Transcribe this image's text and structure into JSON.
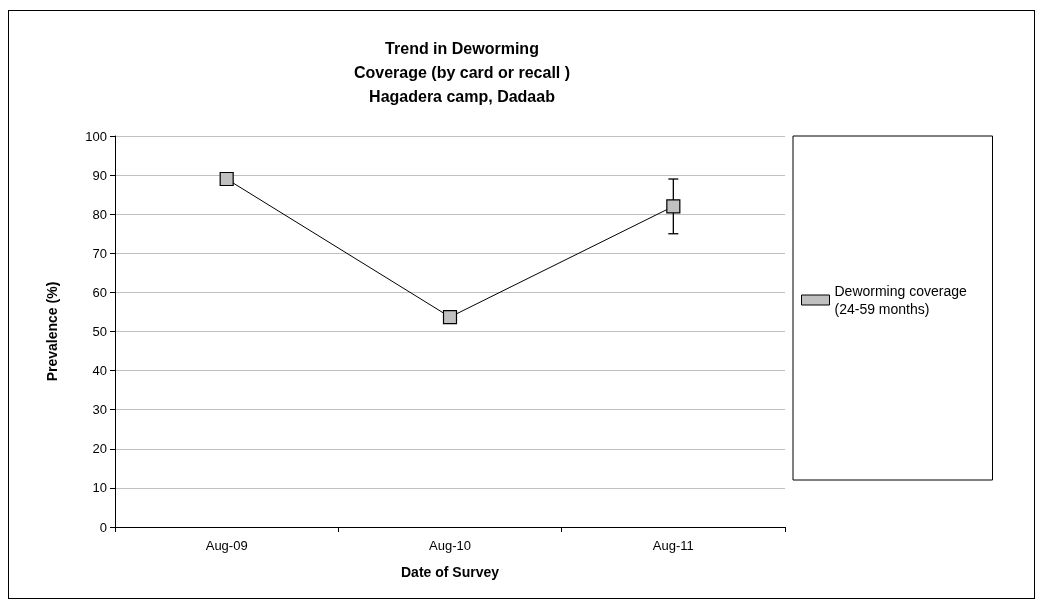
{
  "chart_data": {
    "type": "line",
    "title": "Trend in Deworming\nCoverage (by card or recall )\nHagadera camp, Dadaab",
    "xlabel": "Date of Survey",
    "ylabel": "Prevalence (%)",
    "categories": [
      "Aug-09",
      "Aug-10",
      "Aug-11"
    ],
    "series": [
      {
        "name": "Deworming coverage (24-59 months)",
        "color": "#c0c0c0",
        "values": [
          89,
          53.7,
          82
        ],
        "errors": [
          null,
          null,
          [
            75,
            89
          ]
        ]
      }
    ],
    "ylim": [
      0,
      100
    ],
    "yticks": [
      0,
      10,
      20,
      30,
      40,
      50,
      60,
      70,
      80,
      90,
      100
    ],
    "grid": "y",
    "legend": "right",
    "marker": "square",
    "line_style": "solid"
  }
}
